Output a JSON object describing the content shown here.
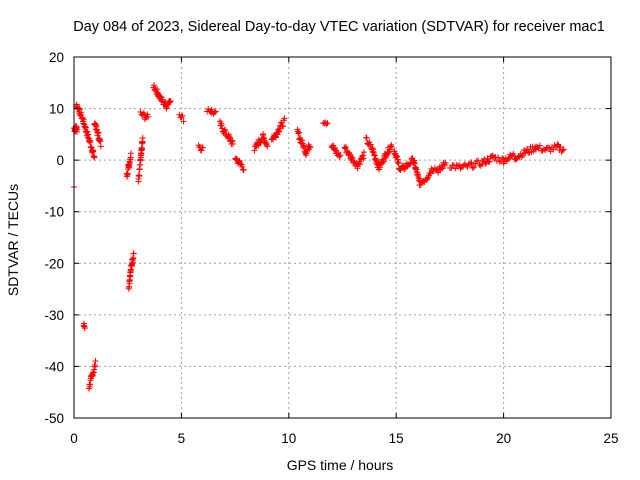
{
  "chart_data": {
    "type": "scatter",
    "title": "Day 084 of 2023, Sidereal Day-to-day VTEC variation (SDTVAR) for receiver mac1",
    "xlabel": "GPS time / hours",
    "ylabel": "SDTVAR / TECUs",
    "xlim": [
      0,
      25
    ],
    "ylim": [
      -50,
      20
    ],
    "xticks": [
      0,
      5,
      10,
      15,
      20,
      25
    ],
    "yticks": [
      -50,
      -40,
      -30,
      -20,
      -10,
      0,
      10,
      20
    ],
    "xtick_labels": [
      "0",
      "5",
      "10",
      "15",
      "20",
      "25"
    ],
    "ytick_labels": [
      "-50",
      "-40",
      "-30",
      "-20",
      "-10",
      "0",
      "10",
      "20"
    ],
    "grid": true,
    "marker": "plus",
    "color": "#ff0000",
    "segments": [
      {
        "x": [
          0.0,
          0.05,
          0.1,
          0.15
        ],
        "y": [
          6.2,
          6.0,
          6.3,
          5.9
        ]
      },
      {
        "x": [
          0.0
        ],
        "y": [
          -5.2
        ]
      },
      {
        "x": [
          0.1,
          0.25,
          0.4,
          0.55,
          0.7,
          0.85,
          0.95
        ],
        "y": [
          10.8,
          9.5,
          8.0,
          6.0,
          4.0,
          2.0,
          0.5
        ]
      },
      {
        "x": [
          0.45,
          0.5
        ],
        "y": [
          -32.0,
          -32.3
        ]
      },
      {
        "x": [
          0.7,
          0.8,
          0.9,
          1.0
        ],
        "y": [
          -44.0,
          -42.5,
          -41.0,
          -39.5
        ]
      },
      {
        "x": [
          0.95,
          1.05,
          1.15,
          1.25
        ],
        "y": [
          7.5,
          6.0,
          4.5,
          3.0
        ]
      },
      {
        "x": [
          2.45,
          2.55,
          2.65
        ],
        "y": [
          -3.0,
          -1.0,
          1.0
        ]
      },
      {
        "x": [
          2.55,
          2.62,
          2.7,
          2.78
        ],
        "y": [
          -24.5,
          -22.0,
          -20.0,
          -18.0
        ]
      },
      {
        "x": [
          3.0,
          3.1,
          3.2
        ],
        "y": [
          -4.0,
          0.0,
          4.0
        ]
      },
      {
        "x": [
          3.1,
          3.3,
          3.45
        ],
        "y": [
          9.0,
          8.5,
          8.2
        ]
      },
      {
        "x": [
          3.7,
          3.9,
          4.1,
          4.3,
          4.5
        ],
        "y": [
          14.5,
          13.0,
          11.5,
          10.5,
          12.0
        ]
      },
      {
        "x": [
          4.9,
          5.1
        ],
        "y": [
          8.5,
          8.0
        ]
      },
      {
        "x": [
          5.8,
          6.0
        ],
        "y": [
          3.0,
          2.0
        ]
      },
      {
        "x": [
          6.2,
          6.4,
          6.6
        ],
        "y": [
          10.0,
          9.5,
          9.0
        ]
      },
      {
        "x": [
          6.8,
          7.0,
          7.2,
          7.4
        ],
        "y": [
          7.0,
          5.5,
          4.5,
          3.0
        ]
      },
      {
        "x": [
          7.5,
          7.7,
          7.9
        ],
        "y": [
          0.5,
          -0.5,
          -1.5
        ]
      },
      {
        "x": [
          8.4,
          8.6,
          8.8,
          9.0
        ],
        "y": [
          2.0,
          3.5,
          4.5,
          3.0
        ]
      },
      {
        "x": [
          9.2,
          9.4,
          9.6,
          9.8
        ],
        "y": [
          4.0,
          5.0,
          6.5,
          7.5
        ]
      },
      {
        "x": [
          10.4,
          10.6,
          10.8,
          11.0
        ],
        "y": [
          5.5,
          3.5,
          1.5,
          3.0
        ]
      },
      {
        "x": [
          11.6,
          11.8
        ],
        "y": [
          7.6,
          7.4
        ]
      },
      {
        "x": [
          12.0,
          12.2,
          12.4
        ],
        "y": [
          3.0,
          1.5,
          0.8
        ]
      },
      {
        "x": [
          12.6,
          12.9,
          13.2,
          13.5
        ],
        "y": [
          2.5,
          0.5,
          -1.0,
          1.0
        ]
      },
      {
        "x": [
          13.6,
          13.9,
          14.2,
          14.5,
          14.8
        ],
        "y": [
          4.0,
          2.0,
          -1.5,
          1.0,
          3.0
        ]
      },
      {
        "x": [
          14.9,
          15.2,
          15.5,
          15.8,
          16.1,
          16.4,
          16.7,
          17.0,
          17.3
        ],
        "y": [
          2.0,
          -2.0,
          -1.0,
          0.0,
          -4.5,
          -3.5,
          -1.5,
          -2.0,
          -0.5
        ]
      },
      {
        "x": [
          17.5,
          18.0,
          18.5,
          19.0,
          19.5,
          20.0,
          20.5
        ],
        "y": [
          -1.0,
          -1.5,
          -1.0,
          -0.5,
          0.5,
          0.0,
          1.0
        ]
      },
      {
        "x": [
          20.5,
          21.0,
          21.5,
          22.0,
          22.5,
          22.8
        ],
        "y": [
          0.5,
          1.5,
          2.5,
          2.0,
          2.5,
          2.0
        ]
      }
    ]
  }
}
